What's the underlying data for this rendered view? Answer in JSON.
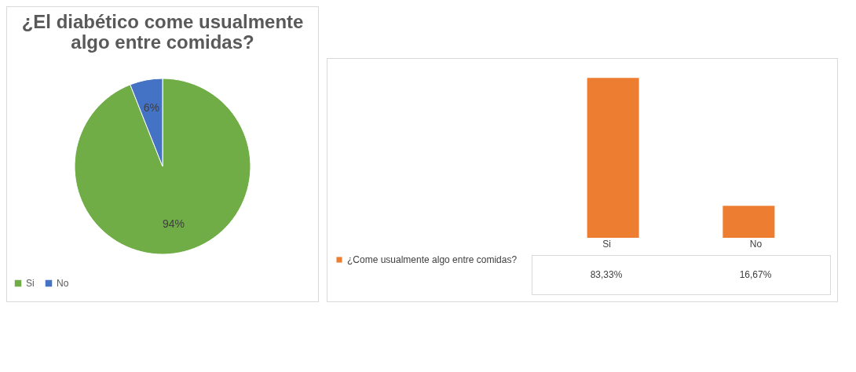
{
  "chart_data": [
    {
      "type": "pie",
      "title": "¿El diabético come usualmente algo entre comidas?",
      "categories": [
        "Si",
        "No"
      ],
      "values": [
        94,
        6
      ],
      "colors": [
        "#70ad47",
        "#4472c4"
      ],
      "value_labels": [
        "94%",
        "6%"
      ],
      "legend": "bottom"
    },
    {
      "type": "bar",
      "categories": [
        "Si",
        "No"
      ],
      "series": [
        {
          "name": "¿Come usualmente algo entre comidas?",
          "color": "#ed7d31",
          "values": [
            83.33,
            16.67
          ],
          "value_labels": [
            "83,33%",
            "16,67%"
          ]
        }
      ],
      "legend": "bottom"
    }
  ]
}
